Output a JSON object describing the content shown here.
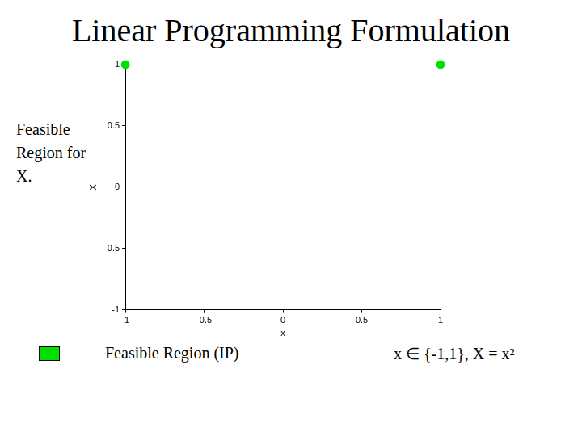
{
  "chart_data": {
    "type": "scatter",
    "title": "Linear Programming Formulation",
    "x_label": "x",
    "y_label": "X",
    "x": [
      -1,
      1
    ],
    "series": [
      {
        "name": "Feasible Region (IP)",
        "color": "#00e000",
        "marker": "circle",
        "values": [
          1,
          1
        ]
      }
    ],
    "xlim": [
      -1,
      1
    ],
    "xticks": [
      -1,
      -0.5,
      0,
      0.5,
      1
    ],
    "ylim": [
      -1,
      1
    ],
    "yticks": [
      -1,
      -0.5,
      0,
      0.5,
      1
    ],
    "grid": false,
    "legend": "bottom left",
    "annotations": [
      "Feasible Region for X.",
      "x ∈ {-1,1}, X = x²"
    ]
  }
}
